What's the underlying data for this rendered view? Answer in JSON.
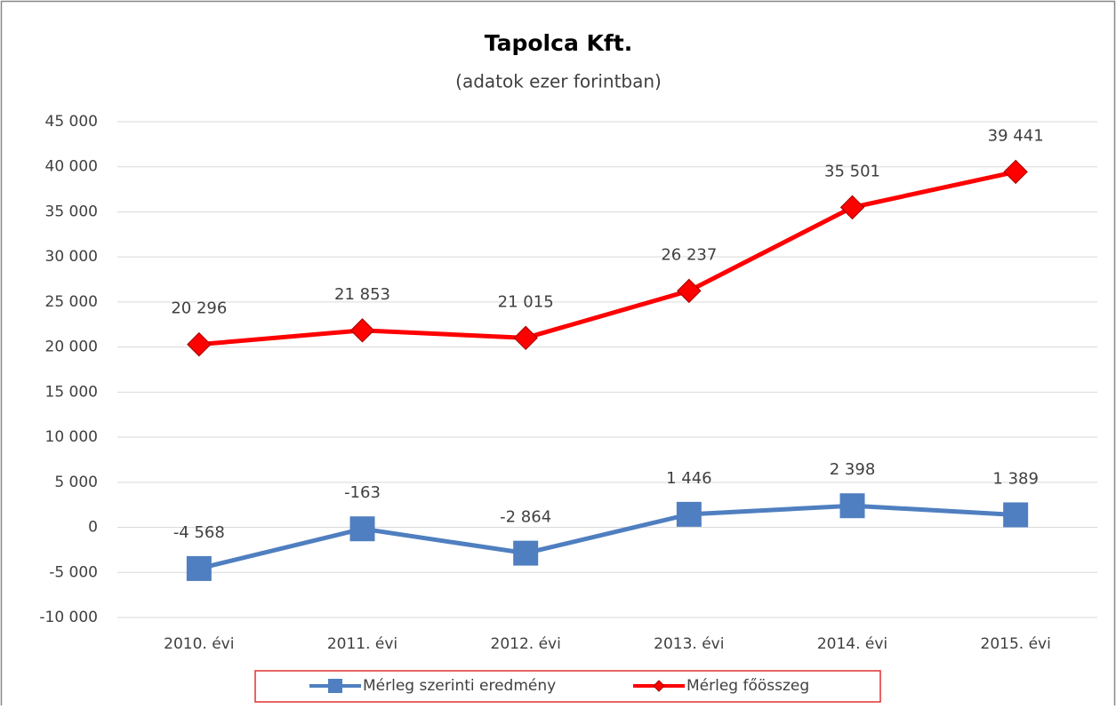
{
  "chart_data": {
    "type": "line",
    "title": "Tapolca Kft.",
    "subtitle": "(adatok ezer forintban)",
    "categories": [
      "2010. évi",
      "2011. évi",
      "2012. évi",
      "2013. évi",
      "2014. évi",
      "2015. évi"
    ],
    "series": [
      {
        "name": "Mérleg szerinti eredmény",
        "color": "#4f7fc0",
        "marker": "square",
        "values": [
          -4568,
          -163,
          -2864,
          1446,
          2398,
          1389
        ],
        "value_labels": [
          "-4 568",
          "-163",
          "-2 864",
          "1 446",
          "2 398",
          "1 389"
        ]
      },
      {
        "name": "Mérleg főösszeg",
        "color": "#ff0000",
        "marker": "diamond",
        "values": [
          20296,
          21853,
          21015,
          26237,
          35501,
          39441
        ],
        "value_labels": [
          "20 296",
          "21 853",
          "21 015",
          "26 237",
          "35 501",
          "39 441"
        ]
      }
    ],
    "ylim": [
      -10000,
      45000
    ],
    "yticks": [
      {
        "value": -10000,
        "label": "-10 000"
      },
      {
        "value": -5000,
        "label": "-5 000"
      },
      0,
      {
        "value": 5000,
        "label": "5 000"
      },
      {
        "value": 10000,
        "label": "10 000"
      },
      {
        "value": 15000,
        "label": "15 000"
      },
      {
        "value": 20000,
        "label": "20 000"
      },
      {
        "value": 25000,
        "label": "25 000"
      },
      {
        "value": 30000,
        "label": "30 000"
      },
      {
        "value": 35000,
        "label": "35 000"
      },
      {
        "value": 40000,
        "label": "40 000"
      },
      {
        "value": 45000,
        "label": "45 000"
      }
    ],
    "grid": true,
    "legend": "bottom"
  }
}
